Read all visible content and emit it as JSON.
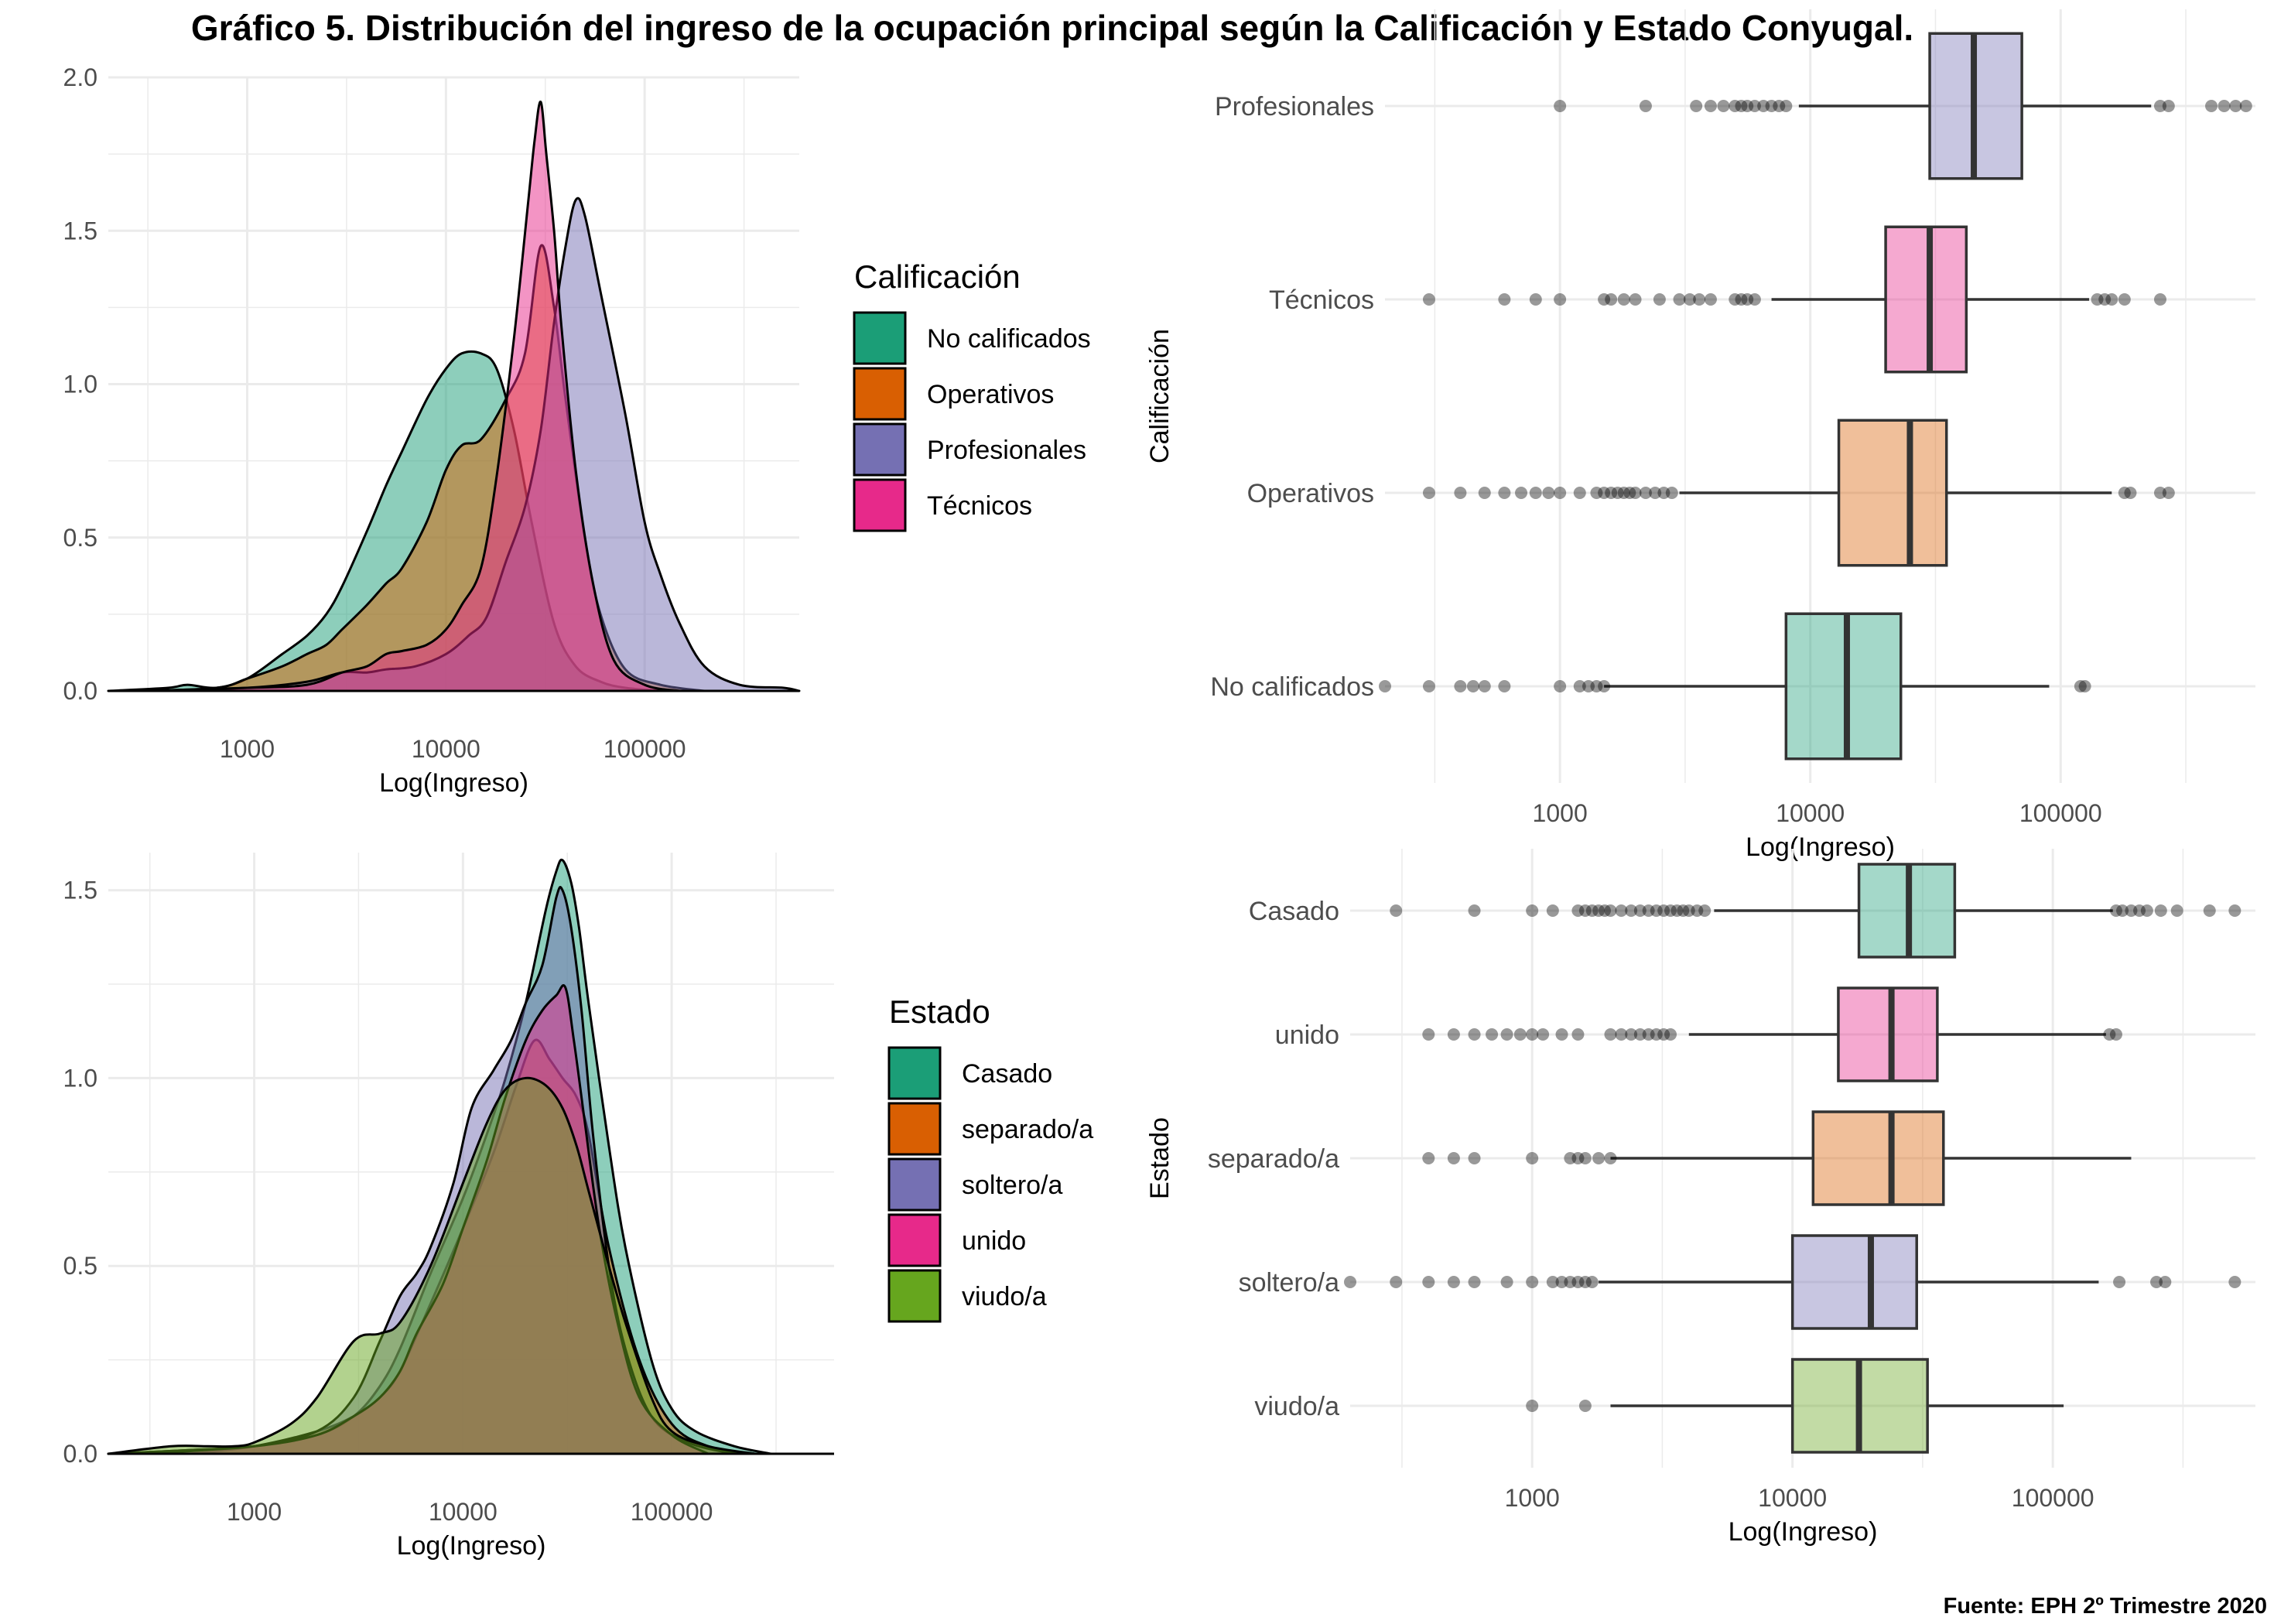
{
  "title": "Gráfico 5. Distribución del ingreso de la ocupación principal según la Calificación y Estado Conyugal.",
  "source": "Fuente: EPH 2º Trimestre 2020",
  "colors": {
    "No calificados": "#1b9e77",
    "Operativos": "#d95f02",
    "Profesionales": "#7570b3",
    "Técnicos": "#e7298a",
    "Casado": "#1b9e77",
    "separado/a": "#d95f02",
    "soltero/a": "#7570b3",
    "unido": "#e7298a",
    "viudo/a": "#66a61e"
  },
  "chart_data": [
    {
      "id": "density-calificacion",
      "type": "area",
      "xlabel": "Log(Ingreso)",
      "ylabel": "",
      "xscale": "log10",
      "xlim": [
        200,
        600000
      ],
      "ylim": [
        0,
        2.0
      ],
      "xticks": [
        "1000",
        "10000",
        "100000"
      ],
      "yticks": [
        "0.0",
        "0.5",
        "1.0",
        "1.5",
        "2.0"
      ],
      "legend_title": "Calificación",
      "legend_position": "right",
      "grid": true,
      "series": [
        {
          "name": "No calificados",
          "x": [
            200,
            400,
            500,
            700,
            1000,
            1500,
            2000,
            2500,
            3000,
            4000,
            5000,
            6000,
            8000,
            10000,
            12000,
            15000,
            18000,
            22000,
            27000,
            35000,
            45000,
            60000,
            80000,
            120000
          ],
          "y": [
            0,
            0.01,
            0.02,
            0.01,
            0.04,
            0.12,
            0.18,
            0.25,
            0.34,
            0.52,
            0.67,
            0.78,
            0.95,
            1.05,
            1.1,
            1.1,
            1.05,
            0.85,
            0.55,
            0.22,
            0.08,
            0.03,
            0.01,
            0
          ]
        },
        {
          "name": "Operativos",
          "x": [
            300,
            700,
            1000,
            1500,
            2000,
            2500,
            3000,
            4000,
            5000,
            6000,
            8000,
            10000,
            12000,
            15000,
            20000,
            25000,
            30000,
            35000,
            40000,
            50000,
            60000,
            80000,
            120000,
            200000
          ],
          "y": [
            0,
            0.01,
            0.04,
            0.08,
            0.12,
            0.15,
            0.2,
            0.28,
            0.35,
            0.4,
            0.55,
            0.72,
            0.8,
            0.82,
            0.95,
            1.1,
            1.45,
            1.25,
            0.95,
            0.5,
            0.25,
            0.07,
            0.02,
            0
          ]
        },
        {
          "name": "Profesionales",
          "x": [
            300,
            1000,
            2000,
            3000,
            4000,
            5000,
            7000,
            10000,
            13000,
            16000,
            20000,
            25000,
            30000,
            35000,
            40000,
            45000,
            50000,
            60000,
            80000,
            100000,
            120000,
            150000,
            200000,
            300000,
            500000,
            600000
          ],
          "y": [
            0,
            0.01,
            0.03,
            0.06,
            0.06,
            0.07,
            0.08,
            0.12,
            0.18,
            0.24,
            0.42,
            0.6,
            0.85,
            1.2,
            1.45,
            1.6,
            1.55,
            1.3,
            0.9,
            0.55,
            0.38,
            0.22,
            0.08,
            0.02,
            0.01,
            0
          ]
        },
        {
          "name": "Técnicos",
          "x": [
            300,
            1000,
            2000,
            3000,
            4000,
            5000,
            6000,
            8000,
            10000,
            12000,
            15000,
            18000,
            22000,
            26000,
            28000,
            30000,
            32000,
            35000,
            38000,
            45000,
            55000,
            70000,
            100000,
            150000
          ],
          "y": [
            0,
            0.01,
            0.02,
            0.06,
            0.08,
            0.12,
            0.13,
            0.15,
            0.2,
            0.28,
            0.4,
            0.7,
            1.15,
            1.6,
            1.8,
            1.92,
            1.75,
            1.5,
            1.2,
            0.72,
            0.35,
            0.1,
            0.02,
            0
          ]
        }
      ]
    },
    {
      "id": "boxplot-calificacion",
      "type": "box",
      "xlabel": "Log(Ingreso)",
      "ylabel": "Calificación",
      "xscale": "log10",
      "xlim": [
        200,
        600000
      ],
      "xticks": [
        "1000",
        "10000",
        "100000"
      ],
      "categories": [
        "Profesionales",
        "Técnicos",
        "Operativos",
        "No calificados"
      ],
      "boxes": [
        {
          "name": "Profesionales",
          "whislo": 9000,
          "q1": 30000,
          "median": 45000,
          "q3": 70000,
          "whishi": 230000,
          "outliers": [
            1000,
            2200,
            3500,
            4000,
            4500,
            5000,
            5300,
            5600,
            6000,
            6500,
            7000,
            7500,
            8000,
            250000,
            270000,
            400000,
            450000,
            500000,
            550000
          ]
        },
        {
          "name": "Técnicos",
          "whislo": 7000,
          "q1": 20000,
          "median": 30000,
          "q3": 42000,
          "whishi": 130000,
          "outliers": [
            300,
            600,
            800,
            1000,
            1500,
            1600,
            1800,
            2000,
            2500,
            3000,
            3300,
            3600,
            4000,
            5000,
            5300,
            5600,
            6000,
            140000,
            150000,
            160000,
            180000,
            250000
          ]
        },
        {
          "name": "Operativos",
          "whislo": 3000,
          "q1": 13000,
          "median": 25000,
          "q3": 35000,
          "whishi": 160000,
          "outliers": [
            300,
            400,
            500,
            600,
            700,
            800,
            900,
            1000,
            1200,
            1400,
            1500,
            1600,
            1700,
            1800,
            1900,
            2000,
            2200,
            2400,
            2600,
            2800,
            180000,
            190000,
            250000,
            270000
          ]
        },
        {
          "name": "No calificados",
          "whislo": 1500,
          "q1": 8000,
          "median": 14000,
          "q3": 23000,
          "whishi": 90000,
          "outliers": [
            200,
            300,
            400,
            450,
            500,
            600,
            1000,
            1200,
            1300,
            1400,
            1500,
            120000,
            125000
          ]
        }
      ]
    },
    {
      "id": "density-estado",
      "type": "area",
      "xlabel": "Log(Ingreso)",
      "ylabel": "",
      "xscale": "log10",
      "xlim": [
        200,
        600000
      ],
      "ylim": [
        0,
        1.6
      ],
      "xticks": [
        "1000",
        "10000",
        "100000"
      ],
      "yticks": [
        "0.0",
        "0.5",
        "1.0",
        "1.5"
      ],
      "legend_title": "Estado",
      "legend_position": "right",
      "grid": true,
      "series": [
        {
          "name": "Casado",
          "x": [
            200,
            500,
            1000,
            2000,
            3000,
            4000,
            5000,
            7000,
            10000,
            13000,
            16000,
            20000,
            25000,
            28000,
            30000,
            33000,
            36000,
            40000,
            50000,
            60000,
            80000,
            100000,
            130000,
            200000,
            300000
          ],
          "y": [
            0,
            0.01,
            0.02,
            0.05,
            0.1,
            0.18,
            0.28,
            0.48,
            0.68,
            0.85,
            1.0,
            1.2,
            1.45,
            1.55,
            1.58,
            1.52,
            1.4,
            1.2,
            0.82,
            0.55,
            0.25,
            0.12,
            0.06,
            0.02,
            0
          ]
        },
        {
          "name": "separado/a",
          "x": [
            500,
            1000,
            2000,
            3000,
            4000,
            5000,
            7000,
            10000,
            14000,
            18000,
            22000,
            26000,
            30000,
            35000,
            40000,
            50000,
            70000,
            100000,
            150000,
            250000
          ],
          "y": [
            0,
            0.02,
            0.06,
            0.1,
            0.15,
            0.22,
            0.4,
            0.6,
            0.8,
            0.98,
            1.1,
            1.05,
            1.0,
            0.95,
            0.85,
            0.55,
            0.25,
            0.08,
            0.02,
            0
          ]
        },
        {
          "name": "soltero/a",
          "x": [
            200,
            500,
            1000,
            2000,
            3000,
            4000,
            5000,
            6000,
            7000,
            9000,
            11000,
            14000,
            17000,
            20000,
            24000,
            28000,
            30000,
            33000,
            37000,
            42000,
            50000,
            60000,
            80000,
            120000,
            200000
          ],
          "y": [
            0,
            0.01,
            0.02,
            0.06,
            0.15,
            0.3,
            0.42,
            0.48,
            0.55,
            0.72,
            0.92,
            1.02,
            1.1,
            1.2,
            1.3,
            1.48,
            1.5,
            1.4,
            1.18,
            0.85,
            0.5,
            0.28,
            0.1,
            0.03,
            0
          ]
        },
        {
          "name": "unido",
          "x": [
            300,
            1000,
            2000,
            3000,
            4000,
            5000,
            6000,
            8000,
            10000,
            13000,
            16000,
            20000,
            24000,
            28000,
            31000,
            34000,
            38000,
            45000,
            55000,
            70000,
            100000,
            150000
          ],
          "y": [
            0,
            0.02,
            0.05,
            0.1,
            0.15,
            0.22,
            0.32,
            0.45,
            0.6,
            0.78,
            0.95,
            1.1,
            1.18,
            1.22,
            1.24,
            1.1,
            0.9,
            0.6,
            0.35,
            0.15,
            0.05,
            0
          ]
        },
        {
          "name": "viudo/a",
          "x": [
            200,
            400,
            600,
            800,
            1000,
            1500,
            2000,
            3000,
            4000,
            5000,
            7000,
            10000,
            13000,
            16000,
            20000,
            25000,
            30000,
            35000,
            40000,
            50000,
            60000,
            80000,
            100000,
            150000,
            250000
          ],
          "y": [
            0,
            0.02,
            0.02,
            0.02,
            0.03,
            0.08,
            0.15,
            0.3,
            0.32,
            0.35,
            0.5,
            0.72,
            0.88,
            0.97,
            1.0,
            0.98,
            0.92,
            0.82,
            0.7,
            0.5,
            0.35,
            0.15,
            0.06,
            0.02,
            0
          ]
        }
      ]
    },
    {
      "id": "boxplot-estado",
      "type": "box",
      "xlabel": "Log(Ingreso)",
      "ylabel": "Estado",
      "xscale": "log10",
      "xlim": [
        200,
        600000
      ],
      "xticks": [
        "1000",
        "10000",
        "100000"
      ],
      "categories": [
        "Casado",
        "unido",
        "separado/a",
        "soltero/a",
        "viudo/a"
      ],
      "boxes": [
        {
          "name": "Casado",
          "whislo": 5000,
          "q1": 18000,
          "median": 28000,
          "q3": 42000,
          "whishi": 170000,
          "outliers": [
            300,
            600,
            1000,
            1200,
            1500,
            1600,
            1700,
            1800,
            1900,
            2000,
            2200,
            2400,
            2600,
            2800,
            3000,
            3200,
            3400,
            3600,
            3800,
            4000,
            4300,
            4600,
            175000,
            185000,
            200000,
            215000,
            230000,
            260000,
            300000,
            400000,
            500000
          ]
        },
        {
          "name": "unido",
          "whislo": 4000,
          "q1": 15000,
          "median": 24000,
          "q3": 36000,
          "whishi": 160000,
          "outliers": [
            400,
            500,
            600,
            700,
            800,
            900,
            1000,
            1100,
            1300,
            1500,
            2000,
            2200,
            2400,
            2600,
            2800,
            3000,
            3200,
            3400,
            165000,
            175000
          ]
        },
        {
          "name": "separado/a",
          "whislo": 2000,
          "q1": 12000,
          "median": 24000,
          "q3": 38000,
          "whishi": 200000,
          "outliers": [
            400,
            500,
            600,
            1000,
            1400,
            1500,
            1600,
            1800,
            2000
          ]
        },
        {
          "name": "soltero/a",
          "whislo": 1800,
          "q1": 10000,
          "median": 20000,
          "q3": 30000,
          "whishi": 150000,
          "outliers": [
            200,
            300,
            400,
            500,
            600,
            800,
            1000,
            1200,
            1300,
            1400,
            1500,
            1600,
            1700,
            180000,
            250000,
            270000,
            500000
          ]
        },
        {
          "name": "viudo/a",
          "whislo": 2000,
          "q1": 10000,
          "median": 18000,
          "q3": 33000,
          "whishi": 110000,
          "outliers": [
            1000,
            1600
          ]
        }
      ]
    }
  ]
}
